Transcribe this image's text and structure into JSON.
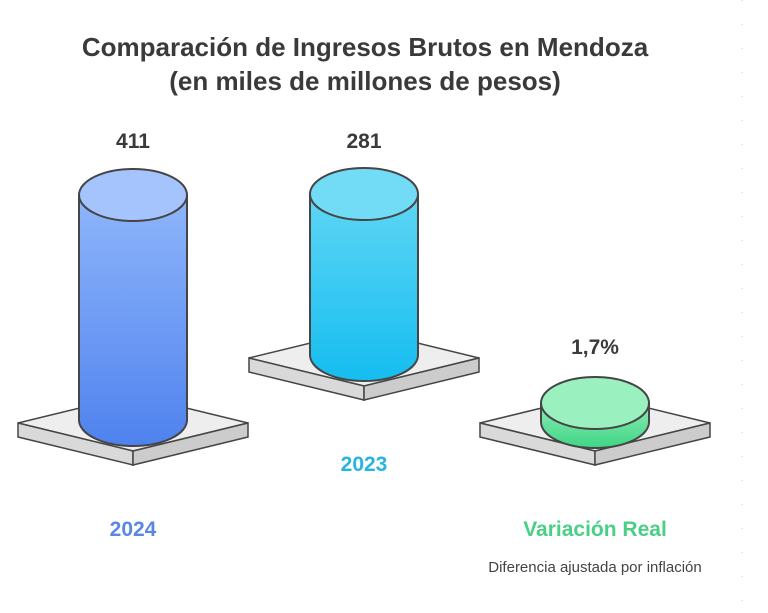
{
  "chart_data": {
    "type": "bar",
    "title": "Comparación de Ingresos Brutos en Mendoza",
    "subtitle": "(en miles de millones de pesos)",
    "categories": [
      "2024",
      "2023",
      "Variación Real"
    ],
    "value_labels": [
      "411",
      "281",
      "1,7%"
    ],
    "values": [
      411,
      281,
      1.7
    ],
    "note": "Diferencia ajustada por inflación",
    "colors": {
      "2024": "#5b8def",
      "2023": "#26c2ea",
      "Variación Real": "#55dc92"
    }
  }
}
